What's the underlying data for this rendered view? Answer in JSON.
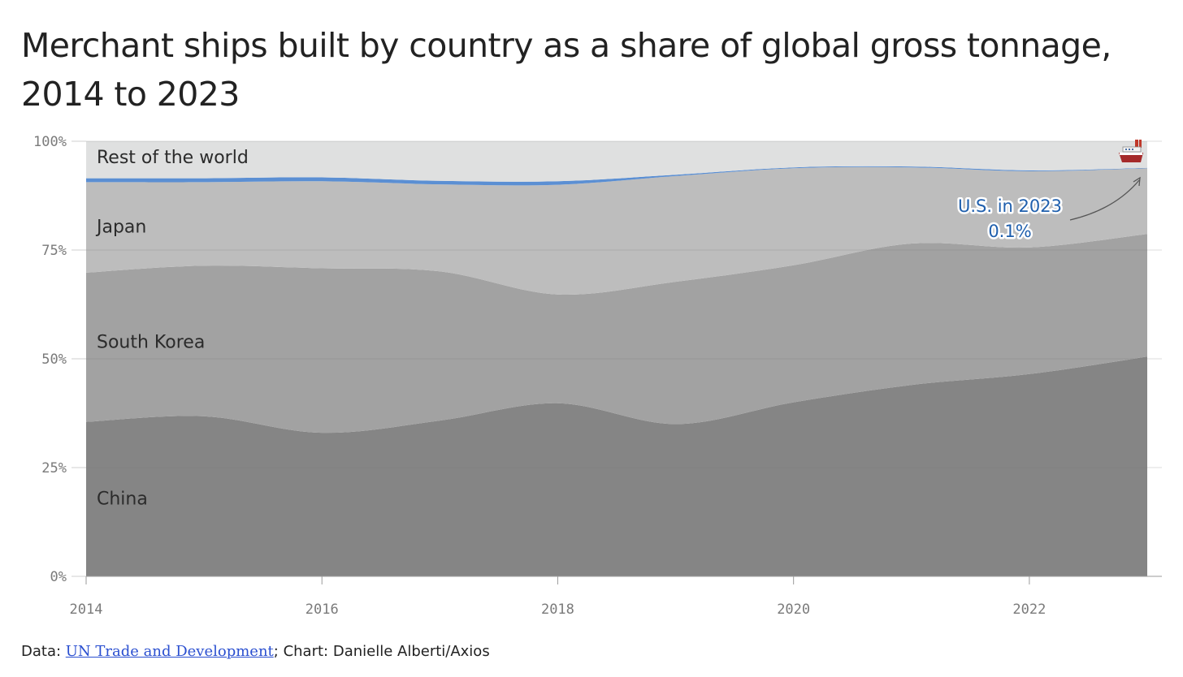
{
  "title": "Merchant ships built by country as a share of global gross tonnage, 2014 to 2023",
  "chart_data": {
    "type": "area",
    "stacked": true,
    "x": [
      2014,
      2015,
      2016,
      2017,
      2018,
      2019,
      2020,
      2021,
      2022,
      2023
    ],
    "series": [
      {
        "name": "China",
        "label": "China",
        "values": [
          35.5,
          36.8,
          33.0,
          35.8,
          39.8,
          35.0,
          40.0,
          44.0,
          46.5,
          50.5
        ],
        "color": "#858585"
      },
      {
        "name": "South Korea",
        "label": "South Korea",
        "values": [
          34.3,
          34.6,
          37.8,
          34.3,
          25.0,
          32.7,
          31.5,
          32.5,
          29.1,
          28.2
        ],
        "color": "#a2a2a2"
      },
      {
        "name": "Japan",
        "label": "Japan",
        "values": [
          20.8,
          19.2,
          20.0,
          20.0,
          25.2,
          24.3,
          22.3,
          17.5,
          17.5,
          15.1
        ],
        "color": "#bdbdbd"
      },
      {
        "name": "U.S.",
        "label": "",
        "values": [
          0.9,
          0.9,
          0.9,
          0.8,
          0.8,
          0.3,
          0.2,
          0.2,
          0.2,
          0.1
        ],
        "color": "#5b8fd3"
      },
      {
        "name": "Rest of the world",
        "label": "Rest of the world",
        "values": [
          8.5,
          8.5,
          8.3,
          9.1,
          9.2,
          7.7,
          6.0,
          5.8,
          6.7,
          6.1
        ],
        "color": "#dfe0e0"
      }
    ],
    "y_ticks": [
      "0%",
      "25%",
      "50%",
      "75%",
      "100%"
    ],
    "y_tick_values": [
      0,
      25,
      50,
      75,
      100
    ],
    "x_ticks": [
      "2014",
      "2016",
      "2018",
      "2020",
      "2022"
    ],
    "x_tick_values": [
      2014,
      2016,
      2018,
      2020,
      2022
    ],
    "ylim": [
      0,
      100
    ],
    "xlim": [
      2014,
      2023
    ],
    "annotation": {
      "line1": "U.S. in 2023",
      "line2": "0.1%",
      "series": "U.S.",
      "x": 2023
    },
    "ship_icon": "ship-icon",
    "gridlines": true
  },
  "footer": {
    "prefix": "Data: ",
    "link_text": "UN Trade and Development",
    "suffix": "; Chart: Danielle Alberti/Axios"
  }
}
